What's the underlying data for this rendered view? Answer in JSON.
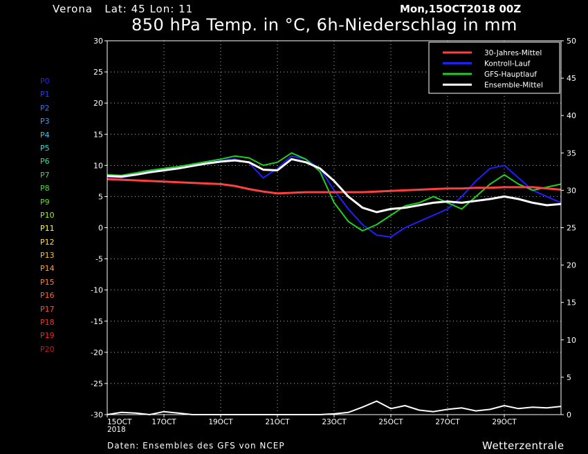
{
  "header": {
    "location": "Verona",
    "coords": "Lat: 45 Lon: 11",
    "run": "Mon,15OCT2018 00Z",
    "title": "850 hPa Temp. in °C, 6h-Niederschlag in mm",
    "source": "Daten: Ensembles des GFS von NCEP",
    "brand": "Wetterzentrale"
  },
  "members": {
    "labels": [
      "P0",
      "P1",
      "P2",
      "P3",
      "P4",
      "P5",
      "P6",
      "P7",
      "P8",
      "P9",
      "P10",
      "P11",
      "P12",
      "P13",
      "P14",
      "P15",
      "P16",
      "P17",
      "P18",
      "P19",
      "P20"
    ],
    "colors": [
      "#2020ff",
      "#2040ff",
      "#2878ff",
      "#28a0ff",
      "#28c8ff",
      "#28e0e0",
      "#30e0a0",
      "#30e060",
      "#40e030",
      "#60e020",
      "#a0f020",
      "#ffff30",
      "#ffe030",
      "#ffc030",
      "#ffa030",
      "#ff8030",
      "#ff6030",
      "#ff5030",
      "#ff3020",
      "#ff2020",
      "#e01010"
    ]
  },
  "chart_data": {
    "type": "line",
    "x_ticks": [
      "15OCT\n2018",
      "17OCT",
      "19OCT",
      "21OCT",
      "23OCT",
      "25OCT",
      "27OCT",
      "29OCT"
    ],
    "x_range_days": [
      0,
      16
    ],
    "y_left": {
      "ticks": [
        30,
        25,
        20,
        15,
        10,
        5,
        0,
        -5,
        -10,
        -15,
        -20,
        -25,
        -30
      ],
      "range": [
        -30,
        30
      ],
      "unit": "°C"
    },
    "y_right": {
      "ticks": [
        50,
        45,
        40,
        35,
        30,
        25,
        20,
        15,
        10,
        5,
        0
      ],
      "range": [
        0,
        50
      ],
      "unit": "mm"
    },
    "grid": true,
    "legend": {
      "position": "top-right",
      "entries": [
        {
          "label": "30-Jahres-Mittel",
          "color": "#ff4040"
        },
        {
          "label": "Kontroll-Lauf",
          "color": "#2020ff"
        },
        {
          "label": "GFS-Hauptlauf",
          "color": "#20d020"
        },
        {
          "label": "Ensemble-Mittel",
          "color": "#ffffff"
        }
      ]
    },
    "temperature": {
      "x_days": [
        0,
        0.5,
        1,
        1.5,
        2,
        2.5,
        3,
        3.5,
        4,
        4.5,
        5,
        5.5,
        6,
        6.5,
        7,
        7.5,
        8,
        8.5,
        9,
        9.5,
        10,
        10.5,
        11,
        11.5,
        12,
        12.5,
        13,
        13.5,
        14,
        14.5,
        15,
        15.5,
        16
      ],
      "climatology": [
        7.8,
        7.7,
        7.6,
        7.5,
        7.4,
        7.3,
        7.2,
        7.1,
        7.0,
        6.7,
        6.2,
        5.8,
        5.5,
        5.6,
        5.7,
        5.7,
        5.7,
        5.7,
        5.7,
        5.8,
        5.9,
        6.0,
        6.1,
        6.2,
        6.3,
        6.3,
        6.4,
        6.4,
        6.5,
        6.5,
        6.5,
        6.3,
        6.1
      ],
      "control": [
        8.2,
        8.0,
        8.5,
        9.0,
        9.3,
        9.6,
        10.0,
        10.4,
        10.8,
        11.0,
        10.4,
        8.0,
        9.5,
        11.5,
        11.0,
        9.5,
        6.0,
        3.0,
        0.5,
        -1.2,
        -1.5,
        0.0,
        1.0,
        2.0,
        3.0,
        5.0,
        7.5,
        9.5,
        10.0,
        8.0,
        6.0,
        5.0,
        4.0
      ],
      "main": [
        8.5,
        8.4,
        8.8,
        9.2,
        9.5,
        9.8,
        10.2,
        10.6,
        11.0,
        11.5,
        11.2,
        10.0,
        10.5,
        12.0,
        11.0,
        9.0,
        4.0,
        1.0,
        -0.5,
        0.5,
        2.0,
        3.5,
        4.0,
        5.0,
        4.0,
        3.0,
        5.0,
        7.0,
        8.5,
        7.0,
        6.0,
        6.5,
        7.0
      ],
      "ensemble_mean": [
        8.3,
        8.2,
        8.5,
        8.9,
        9.2,
        9.5,
        9.9,
        10.3,
        10.6,
        10.8,
        10.5,
        9.3,
        9.2,
        11.0,
        10.5,
        9.5,
        7.5,
        5.0,
        3.2,
        2.5,
        3.0,
        3.2,
        3.6,
        4.0,
        4.2,
        4.0,
        4.3,
        4.6,
        5.0,
        4.6,
        4.0,
        3.6,
        3.8
      ]
    },
    "precipitation": {
      "x_days": [
        0,
        0.5,
        1,
        1.5,
        2,
        2.5,
        3,
        3.5,
        4,
        4.5,
        5,
        5.5,
        6,
        6.5,
        7,
        7.5,
        8,
        8.5,
        9,
        9.5,
        10,
        10.5,
        11,
        11.5,
        12,
        12.5,
        13,
        13.5,
        14,
        14.5,
        15,
        15.5,
        16
      ],
      "ensemble_mean": [
        0,
        0.3,
        0.2,
        0,
        0.4,
        0.2,
        0,
        0,
        0,
        0,
        0,
        0,
        0,
        0,
        0,
        0,
        0.1,
        0.3,
        1.0,
        1.8,
        0.8,
        1.2,
        0.6,
        0.4,
        0.7,
        0.9,
        0.5,
        0.7,
        1.2,
        0.8,
        1.0,
        0.9,
        1.1
      ]
    }
  }
}
